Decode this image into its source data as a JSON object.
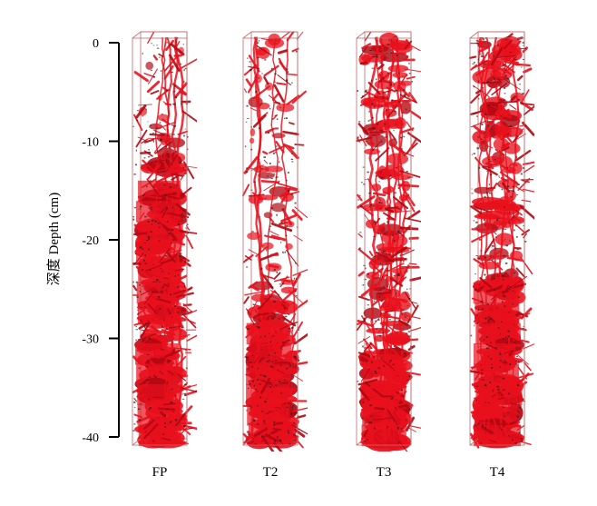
{
  "axis": {
    "title": "深度 Depth (cm)",
    "ticks": [
      {
        "label": "0",
        "value": 0
      },
      {
        "label": "-10",
        "value": -10
      },
      {
        "label": "-20",
        "value": -20
      },
      {
        "label": "-30",
        "value": -30
      },
      {
        "label": "-40",
        "value": -40
      }
    ],
    "range": [
      0,
      -40
    ]
  },
  "columns": [
    {
      "id": "FP",
      "label": "FP",
      "profile": [
        0.2,
        0.3,
        0.25,
        0.35,
        0.45,
        0.55,
        0.75,
        0.85,
        0.85,
        0.9,
        0.9,
        0.85,
        0.85,
        0.85,
        0.8,
        0.82,
        0.85,
        0.9,
        0.85,
        0.88
      ],
      "tracks": 5
    },
    {
      "id": "T2",
      "label": "T2",
      "profile": [
        0.5,
        0.25,
        0.25,
        0.45,
        0.35,
        0.3,
        0.45,
        0.55,
        0.35,
        0.35,
        0.35,
        0.4,
        0.55,
        0.8,
        0.85,
        0.9,
        0.95,
        0.92,
        0.9,
        0.88
      ],
      "tracks": 4
    },
    {
      "id": "T3",
      "label": "T3",
      "profile": [
        0.7,
        0.55,
        0.5,
        0.6,
        0.6,
        0.55,
        0.6,
        0.55,
        0.6,
        0.6,
        0.6,
        0.6,
        0.6,
        0.65,
        0.7,
        0.8,
        0.85,
        0.92,
        0.95,
        0.95
      ],
      "tracks": 7
    },
    {
      "id": "T4",
      "label": "T4",
      "profile": [
        0.75,
        0.6,
        0.5,
        0.7,
        0.7,
        0.55,
        0.5,
        0.5,
        0.8,
        0.6,
        0.5,
        0.6,
        0.85,
        0.9,
        0.9,
        0.85,
        0.88,
        0.92,
        0.95,
        0.95
      ],
      "tracks": 6
    }
  ],
  "colors": {
    "root": "#e8101c",
    "root_dark": "#b00812",
    "root_speck": "#1e1e1e",
    "box_edge": "#c46a6a"
  }
}
